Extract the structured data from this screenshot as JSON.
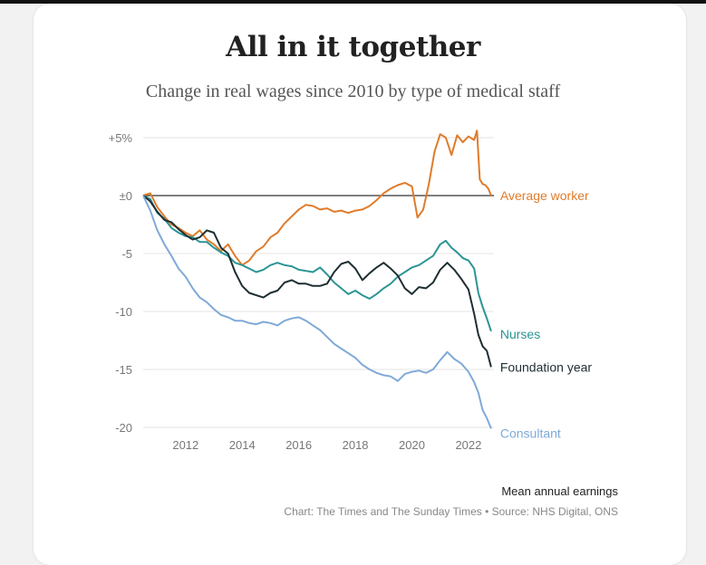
{
  "header": {
    "title": "All in it together",
    "subtitle": "Change in real wages since 2010 by type of medical staff"
  },
  "footer": {
    "note": "Mean annual earnings",
    "source": "Chart: The Times and The Sunday Times • Source: NHS Digital, ONS"
  },
  "chart_data": {
    "type": "line",
    "title": "All in it together",
    "subtitle": "Change in real wages since 2010 by type of medical staff",
    "xlabel": "",
    "ylabel": "",
    "xlim": [
      2010.5,
      2022.9
    ],
    "ylim": [
      -20,
      5
    ],
    "x_ticks": [
      2012,
      2014,
      2016,
      2018,
      2020,
      2022
    ],
    "x_tick_labels": [
      "2012",
      "2014",
      "2016",
      "2018",
      "2020",
      "2022"
    ],
    "y_ticks": [
      5,
      0,
      -5,
      -10,
      -15,
      -20
    ],
    "y_tick_labels": [
      "+5%",
      "±0",
      "-5",
      "-10",
      "-15",
      "-20"
    ],
    "grid": true,
    "legend": "direct labels at right end of lines",
    "series": [
      {
        "name": "Average worker",
        "color": "#e07b2a",
        "points": [
          [
            2010.5,
            0
          ],
          [
            2010.75,
            0.2
          ],
          [
            2011,
            -1
          ],
          [
            2011.25,
            -1.8
          ],
          [
            2011.5,
            -2.5
          ],
          [
            2011.75,
            -2.8
          ],
          [
            2012,
            -3.2
          ],
          [
            2012.25,
            -3.5
          ],
          [
            2012.5,
            -3
          ],
          [
            2012.75,
            -3.8
          ],
          [
            2013,
            -4.2
          ],
          [
            2013.25,
            -4.8
          ],
          [
            2013.5,
            -4.2
          ],
          [
            2013.75,
            -5.2
          ],
          [
            2014,
            -6
          ],
          [
            2014.25,
            -5.6
          ],
          [
            2014.5,
            -4.8
          ],
          [
            2014.75,
            -4.4
          ],
          [
            2015,
            -3.6
          ],
          [
            2015.25,
            -3.2
          ],
          [
            2015.5,
            -2.4
          ],
          [
            2015.75,
            -1.8
          ],
          [
            2016,
            -1.2
          ],
          [
            2016.25,
            -0.8
          ],
          [
            2016.5,
            -0.9
          ],
          [
            2016.75,
            -1.2
          ],
          [
            2017,
            -1.1
          ],
          [
            2017.25,
            -1.4
          ],
          [
            2017.5,
            -1.3
          ],
          [
            2017.75,
            -1.5
          ],
          [
            2018,
            -1.3
          ],
          [
            2018.25,
            -1.2
          ],
          [
            2018.5,
            -0.9
          ],
          [
            2018.75,
            -0.4
          ],
          [
            2019,
            0.2
          ],
          [
            2019.25,
            0.6
          ],
          [
            2019.5,
            0.9
          ],
          [
            2019.75,
            1.1
          ],
          [
            2020,
            0.8
          ],
          [
            2020.2,
            -1.9
          ],
          [
            2020.4,
            -1.2
          ],
          [
            2020.6,
            1
          ],
          [
            2020.8,
            3.8
          ],
          [
            2021,
            5.3
          ],
          [
            2021.2,
            5
          ],
          [
            2021.4,
            3.5
          ],
          [
            2021.6,
            5.2
          ],
          [
            2021.8,
            4.6
          ],
          [
            2022,
            5.1
          ],
          [
            2022.2,
            4.8
          ],
          [
            2022.3,
            5.6
          ],
          [
            2022.4,
            1.4
          ],
          [
            2022.5,
            1
          ],
          [
            2022.6,
            0.9
          ],
          [
            2022.7,
            0.6
          ],
          [
            2022.8,
            0
          ]
        ],
        "end_y": 0
      },
      {
        "name": "Nurses",
        "color": "#2b9494",
        "points": [
          [
            2010.5,
            0
          ],
          [
            2010.75,
            -0.3
          ],
          [
            2011,
            -1.5
          ],
          [
            2011.25,
            -2
          ],
          [
            2011.5,
            -2.8
          ],
          [
            2011.75,
            -3.2
          ],
          [
            2012,
            -3.5
          ],
          [
            2012.25,
            -3.6
          ],
          [
            2012.5,
            -4
          ],
          [
            2012.75,
            -4
          ],
          [
            2013,
            -4.5
          ],
          [
            2013.25,
            -4.9
          ],
          [
            2013.5,
            -5.2
          ],
          [
            2013.75,
            -5.8
          ],
          [
            2014,
            -6
          ],
          [
            2014.25,
            -6.3
          ],
          [
            2014.5,
            -6.6
          ],
          [
            2014.75,
            -6.4
          ],
          [
            2015,
            -6
          ],
          [
            2015.25,
            -5.8
          ],
          [
            2015.5,
            -6
          ],
          [
            2015.75,
            -6.1
          ],
          [
            2016,
            -6.4
          ],
          [
            2016.25,
            -6.5
          ],
          [
            2016.5,
            -6.6
          ],
          [
            2016.75,
            -6.2
          ],
          [
            2017,
            -6.8
          ],
          [
            2017.25,
            -7.5
          ],
          [
            2017.5,
            -8
          ],
          [
            2017.75,
            -8.5
          ],
          [
            2018,
            -8.2
          ],
          [
            2018.25,
            -8.6
          ],
          [
            2018.5,
            -8.9
          ],
          [
            2018.75,
            -8.5
          ],
          [
            2019,
            -8
          ],
          [
            2019.25,
            -7.6
          ],
          [
            2019.5,
            -7
          ],
          [
            2019.75,
            -6.6
          ],
          [
            2020,
            -6.2
          ],
          [
            2020.25,
            -6
          ],
          [
            2020.5,
            -5.6
          ],
          [
            2020.75,
            -5.2
          ],
          [
            2021,
            -4.2
          ],
          [
            2021.2,
            -3.9
          ],
          [
            2021.4,
            -4.5
          ],
          [
            2021.6,
            -4.9
          ],
          [
            2021.8,
            -5.4
          ],
          [
            2022,
            -5.6
          ],
          [
            2022.2,
            -6.3
          ],
          [
            2022.35,
            -8.4
          ],
          [
            2022.5,
            -9.6
          ],
          [
            2022.65,
            -10.6
          ],
          [
            2022.8,
            -11.7
          ]
        ],
        "end_y": -11.7
      },
      {
        "name": "Foundation year",
        "color": "#1e2e32",
        "points": [
          [
            2010.5,
            0
          ],
          [
            2010.75,
            -0.5
          ],
          [
            2011,
            -1.4
          ],
          [
            2011.25,
            -2.1
          ],
          [
            2011.5,
            -2.3
          ],
          [
            2011.75,
            -2.9
          ],
          [
            2012,
            -3.4
          ],
          [
            2012.25,
            -3.8
          ],
          [
            2012.5,
            -3.6
          ],
          [
            2012.75,
            -3
          ],
          [
            2013,
            -3.2
          ],
          [
            2013.25,
            -4.5
          ],
          [
            2013.5,
            -5
          ],
          [
            2013.75,
            -6.6
          ],
          [
            2014,
            -7.8
          ],
          [
            2014.25,
            -8.4
          ],
          [
            2014.5,
            -8.6
          ],
          [
            2014.75,
            -8.8
          ],
          [
            2015,
            -8.4
          ],
          [
            2015.25,
            -8.2
          ],
          [
            2015.5,
            -7.5
          ],
          [
            2015.75,
            -7.3
          ],
          [
            2016,
            -7.6
          ],
          [
            2016.25,
            -7.6
          ],
          [
            2016.5,
            -7.8
          ],
          [
            2016.75,
            -7.8
          ],
          [
            2017,
            -7.6
          ],
          [
            2017.25,
            -6.6
          ],
          [
            2017.5,
            -5.9
          ],
          [
            2017.75,
            -5.7
          ],
          [
            2018,
            -6.3
          ],
          [
            2018.25,
            -7.3
          ],
          [
            2018.5,
            -6.7
          ],
          [
            2018.75,
            -6.2
          ],
          [
            2019,
            -5.8
          ],
          [
            2019.25,
            -6.3
          ],
          [
            2019.5,
            -6.9
          ],
          [
            2019.75,
            -8
          ],
          [
            2020,
            -8.5
          ],
          [
            2020.25,
            -7.9
          ],
          [
            2020.5,
            -8
          ],
          [
            2020.75,
            -7.5
          ],
          [
            2021,
            -6.4
          ],
          [
            2021.25,
            -5.8
          ],
          [
            2021.5,
            -6.4
          ],
          [
            2021.75,
            -7.2
          ],
          [
            2022,
            -8.1
          ],
          [
            2022.2,
            -10.2
          ],
          [
            2022.35,
            -12
          ],
          [
            2022.5,
            -13
          ],
          [
            2022.65,
            -13.4
          ],
          [
            2022.8,
            -14.8
          ]
        ],
        "end_y": -14.8
      },
      {
        "name": "Consultant",
        "color": "#7fa9d8",
        "points": [
          [
            2010.5,
            0
          ],
          [
            2010.75,
            -1.3
          ],
          [
            2011,
            -3
          ],
          [
            2011.25,
            -4.2
          ],
          [
            2011.5,
            -5.2
          ],
          [
            2011.75,
            -6.3
          ],
          [
            2012,
            -7
          ],
          [
            2012.25,
            -8
          ],
          [
            2012.5,
            -8.8
          ],
          [
            2012.75,
            -9.2
          ],
          [
            2013,
            -9.8
          ],
          [
            2013.25,
            -10.3
          ],
          [
            2013.5,
            -10.5
          ],
          [
            2013.75,
            -10.8
          ],
          [
            2014,
            -10.8
          ],
          [
            2014.25,
            -11
          ],
          [
            2014.5,
            -11.1
          ],
          [
            2014.75,
            -10.9
          ],
          [
            2015,
            -11
          ],
          [
            2015.25,
            -11.2
          ],
          [
            2015.5,
            -10.8
          ],
          [
            2015.75,
            -10.6
          ],
          [
            2016,
            -10.5
          ],
          [
            2016.25,
            -10.8
          ],
          [
            2016.5,
            -11.2
          ],
          [
            2016.75,
            -11.6
          ],
          [
            2017,
            -12.2
          ],
          [
            2017.25,
            -12.8
          ],
          [
            2017.5,
            -13.2
          ],
          [
            2017.75,
            -13.6
          ],
          [
            2018,
            -14
          ],
          [
            2018.25,
            -14.6
          ],
          [
            2018.5,
            -15
          ],
          [
            2018.75,
            -15.3
          ],
          [
            2019,
            -15.5
          ],
          [
            2019.25,
            -15.6
          ],
          [
            2019.5,
            -16
          ],
          [
            2019.75,
            -15.4
          ],
          [
            2020,
            -15.2
          ],
          [
            2020.25,
            -15.1
          ],
          [
            2020.5,
            -15.3
          ],
          [
            2020.75,
            -15
          ],
          [
            2021,
            -14.2
          ],
          [
            2021.25,
            -13.5
          ],
          [
            2021.5,
            -14.1
          ],
          [
            2021.75,
            -14.5
          ],
          [
            2022,
            -15.2
          ],
          [
            2022.2,
            -16.1
          ],
          [
            2022.35,
            -17
          ],
          [
            2022.5,
            -18.5
          ],
          [
            2022.65,
            -19.2
          ],
          [
            2022.8,
            -20.1
          ]
        ],
        "end_y": -20.1
      }
    ]
  }
}
